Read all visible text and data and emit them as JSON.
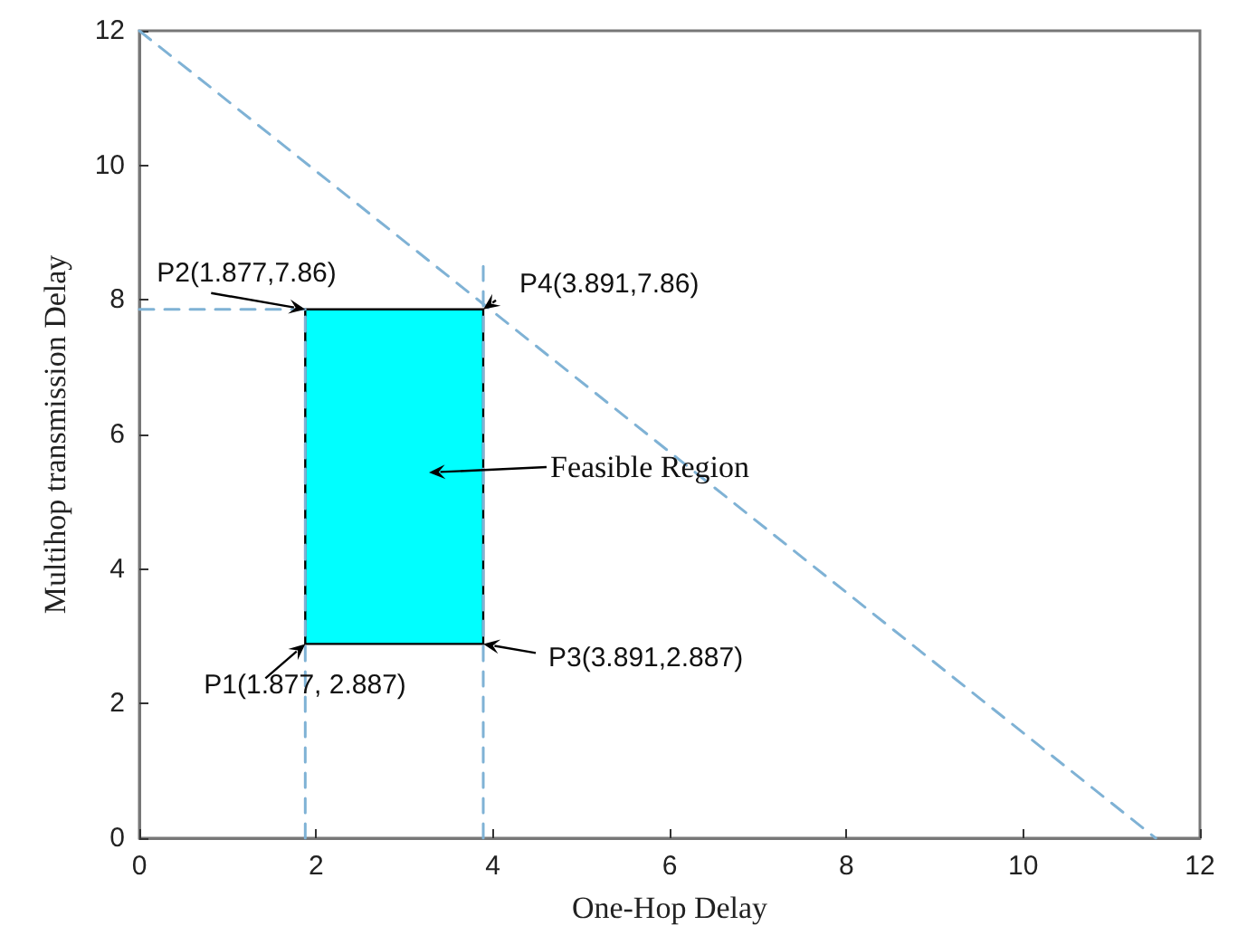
{
  "chart_data": {
    "type": "line",
    "xlabel": "One-Hop Delay",
    "ylabel": "Multihop transmission Delay",
    "xlim": [
      0,
      12
    ],
    "xticks": [
      0,
      2,
      4,
      6,
      8,
      10,
      12
    ],
    "ylim": [
      0,
      12
    ],
    "yticks": [
      0,
      2,
      4,
      6,
      8,
      10,
      12
    ],
    "grid": false,
    "marker": "none",
    "line_style": "dashed",
    "series": [
      {
        "type": "area",
        "color": "#00ffff",
        "x": [
          1.877,
          1.877,
          3.891,
          3.891,
          1.877
        ],
        "values": [
          2.887,
          7.86,
          7.86,
          2.887,
          2.887
        ]
      },
      {
        "color": "#7fb2d5",
        "x": [
          0,
          11.5
        ],
        "values": [
          12,
          0
        ]
      },
      {
        "color": "#7fb2d5",
        "x": [
          1.877,
          1.877
        ],
        "values": [
          0,
          7.86
        ]
      },
      {
        "color": "#7fb2d5",
        "x": [
          3.891,
          3.891
        ],
        "values": [
          0,
          8.5
        ]
      },
      {
        "color": "#7fb2d5",
        "x": [
          0,
          1.877
        ],
        "values": [
          7.86,
          7.86
        ]
      }
    ],
    "annotations": [
      "P2(1.877,7.86)",
      "P4(3.891,7.86)",
      "Feasible Region",
      "P1(1.877, 2.887)",
      "P3(3.891,2.887)"
    ]
  }
}
